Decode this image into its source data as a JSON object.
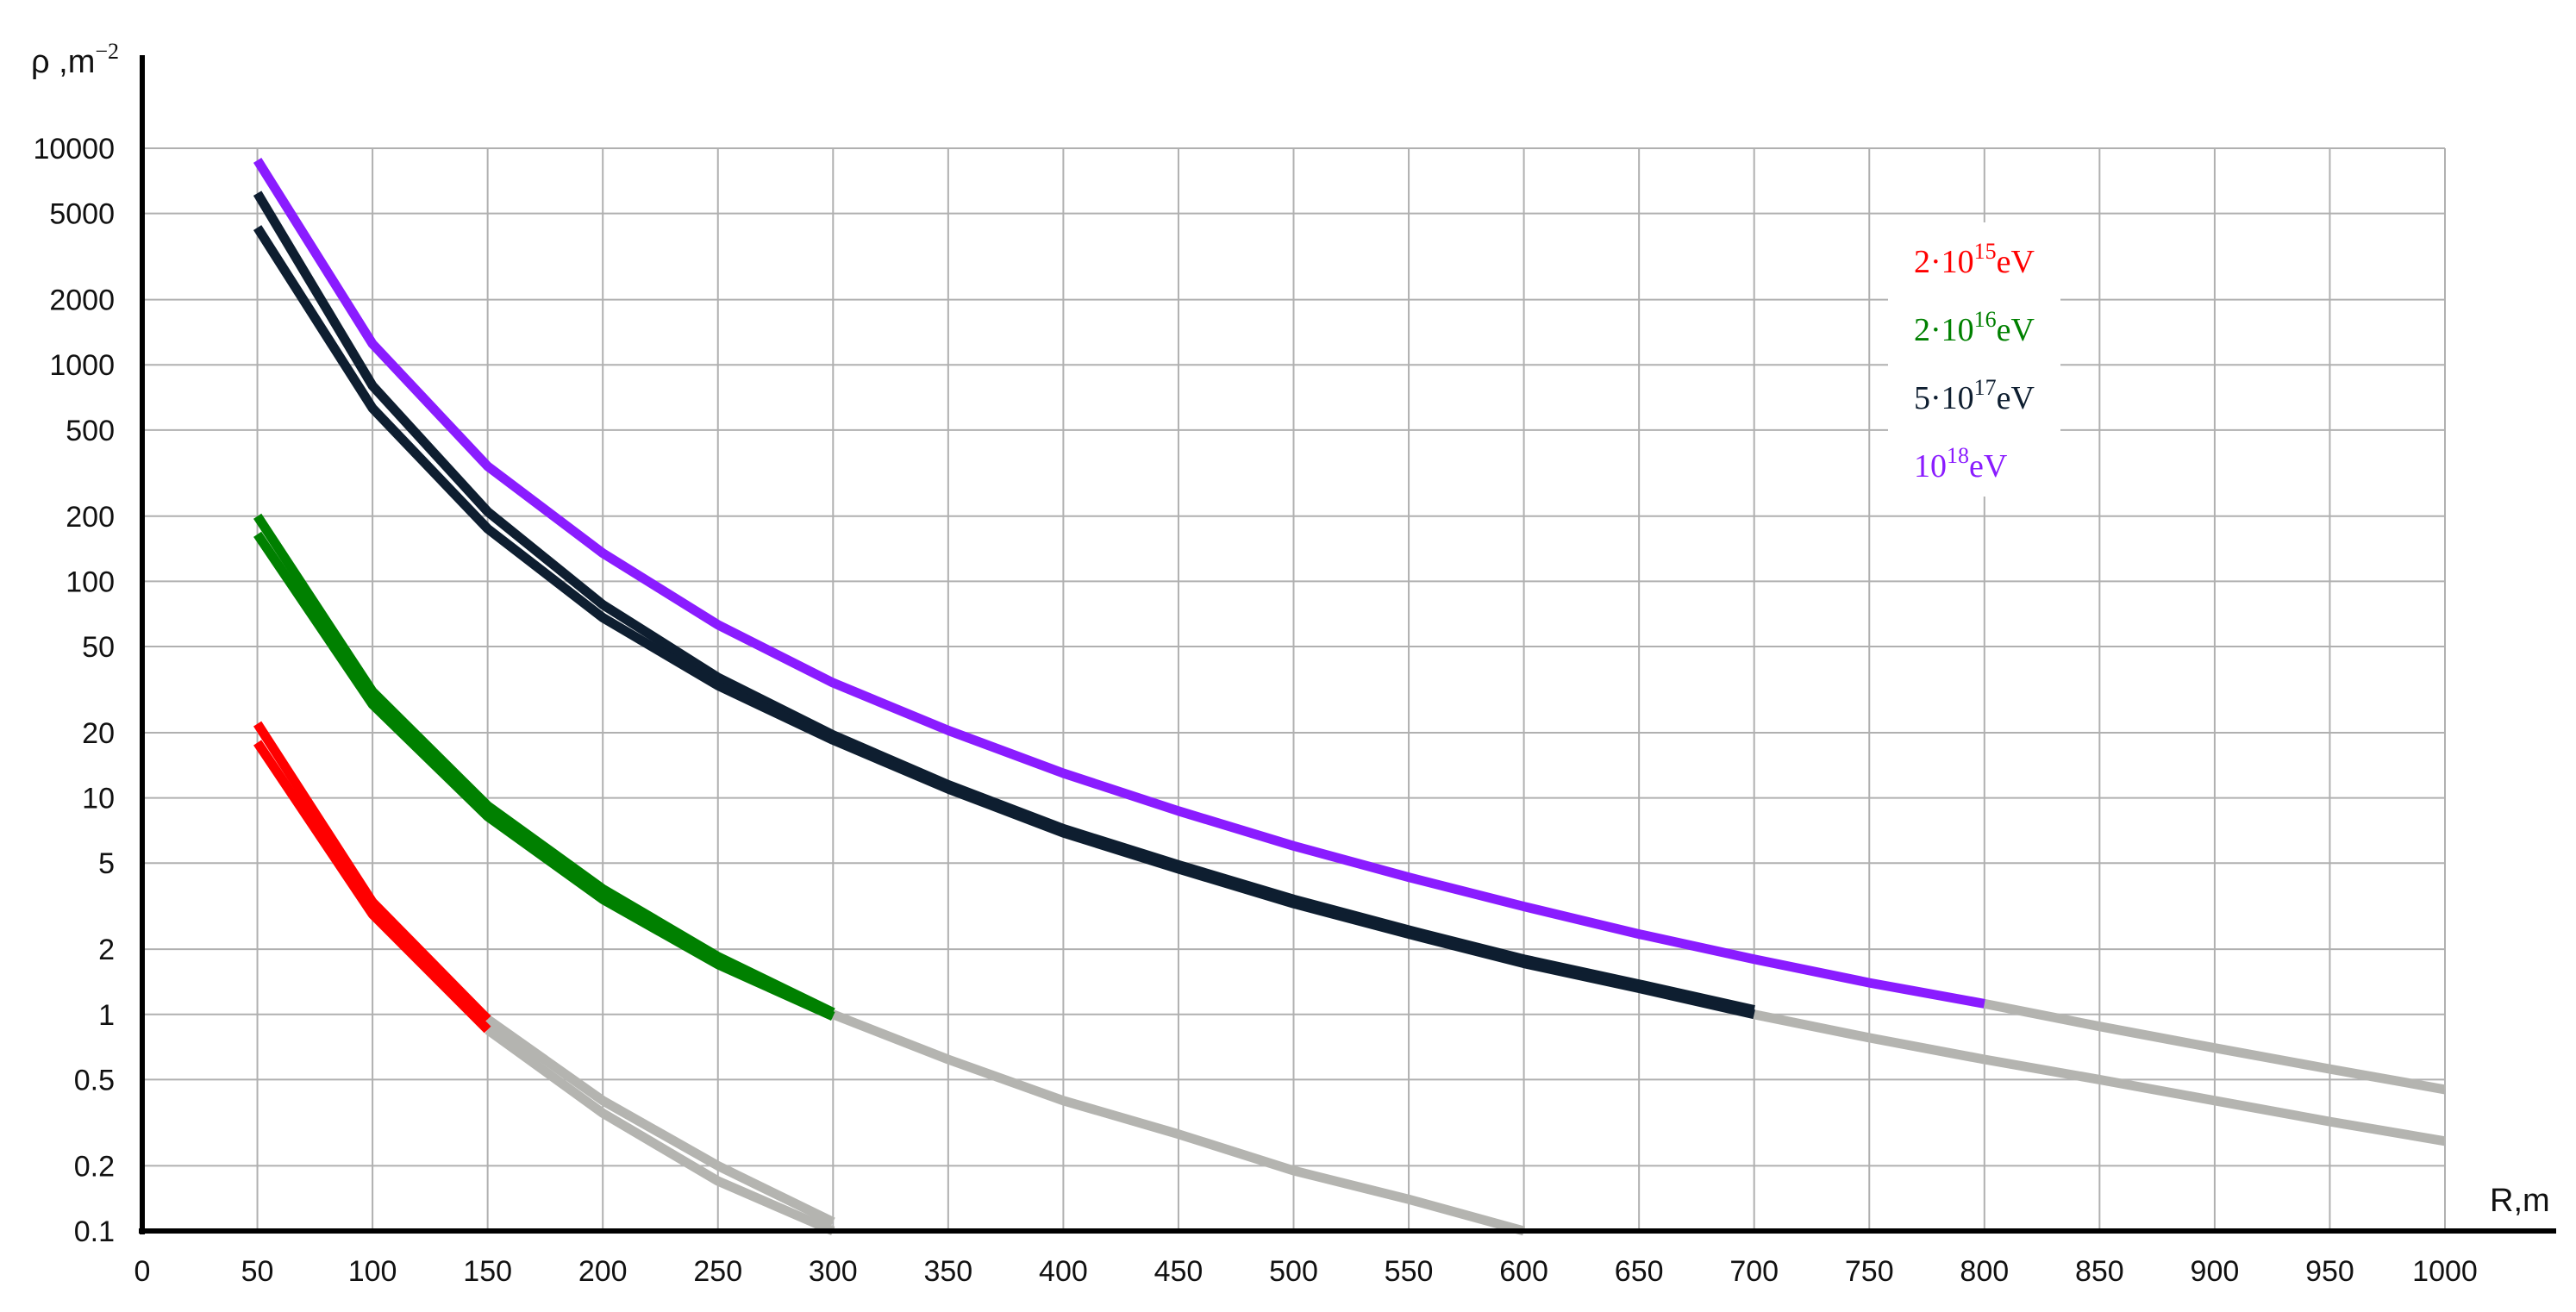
{
  "chart_data": {
    "type": "line",
    "ylabel": "ρ ,m",
    "ylabel_sup": "−2",
    "xlabel": "R,m",
    "x_scale": "linear",
    "y_scale": "log",
    "xlim": [
      0,
      1000
    ],
    "ylim": [
      0.1,
      10000
    ],
    "grid": true,
    "legend_position": "top-right",
    "x_ticks": [
      0,
      50,
      100,
      150,
      200,
      250,
      300,
      350,
      400,
      450,
      500,
      550,
      600,
      650,
      700,
      750,
      800,
      850,
      900,
      950,
      1000
    ],
    "y_ticks": [
      0.1,
      0.2,
      0.5,
      1,
      2,
      5,
      10,
      20,
      50,
      100,
      200,
      500,
      1000,
      2000,
      5000,
      10000
    ],
    "y_tick_labels": [
      "0.1",
      "0.2",
      "0.5",
      "1",
      "2",
      "5",
      "10",
      "20",
      "50",
      "100",
      "200",
      "500",
      "1000",
      "2000",
      "5000",
      "10000"
    ],
    "extrapolation_color": "#b4b4b0",
    "series": [
      {
        "name_base": "2·10",
        "name_exp": "15",
        "name_unit": "eV",
        "color": "#ff0000",
        "lines": [
          {
            "x": [
              50,
              100,
              150
            ],
            "y": [
              22,
              3.3,
              0.95
            ]
          },
          {
            "x": [
              50,
              100,
              150
            ],
            "y": [
              18,
              2.9,
              0.85
            ]
          }
        ],
        "extrapolated": [
          {
            "x": [
              150,
              200,
              250,
              300
            ],
            "y": [
              0.95,
              0.4,
              0.2,
              0.11
            ]
          },
          {
            "x": [
              150,
              200,
              250,
              300
            ],
            "y": [
              0.85,
              0.35,
              0.17,
              0.1
            ]
          }
        ]
      },
      {
        "name_base": "2·10",
        "name_exp": "16",
        "name_unit": "eV",
        "color": "#008000",
        "lines": [
          {
            "x": [
              50,
              100,
              150,
              200,
              250,
              300
            ],
            "y": [
              200,
              31,
              9.2,
              3.8,
              1.85,
              1.02
            ]
          },
          {
            "x": [
              50,
              100,
              150,
              200,
              250,
              300
            ],
            "y": [
              165,
              27,
              8.2,
              3.4,
              1.7,
              0.98
            ]
          }
        ],
        "extrapolated": [
          {
            "x": [
              300,
              350,
              400,
              450,
              500,
              550,
              600
            ],
            "y": [
              1.0,
              0.62,
              0.4,
              0.28,
              0.19,
              0.14,
              0.1
            ]
          }
        ]
      },
      {
        "name_base": "5·10",
        "name_exp": "17",
        "name_unit": "eV",
        "color": "#0e1e30",
        "lines": [
          {
            "x": [
              50,
              100,
              150,
              200,
              250,
              300,
              350,
              400,
              450,
              500,
              550,
              600,
              650,
              700
            ],
            "y": [
              6200,
              800,
              210,
              78,
              36,
              19.5,
              11.5,
              7.2,
              4.9,
              3.4,
              2.45,
              1.8,
              1.38,
              1.05
            ]
          },
          {
            "x": [
              50,
              100,
              150,
              200,
              250,
              300,
              350,
              400,
              450,
              500,
              550,
              600,
              650,
              700
            ],
            "y": [
              4300,
              630,
              175,
              68,
              33,
              18.5,
              11,
              6.9,
              4.7,
              3.25,
              2.35,
              1.72,
              1.32,
              1.0
            ]
          }
        ],
        "extrapolated": [
          {
            "x": [
              700,
              750,
              800,
              850,
              900,
              950,
              1000
            ],
            "y": [
              1.0,
              0.78,
              0.62,
              0.5,
              0.4,
              0.32,
              0.26
            ]
          }
        ]
      },
      {
        "name_base": "10",
        "name_exp": "18",
        "name_unit": "eV",
        "color": "#8a1cff",
        "lines": [
          {
            "x": [
              50,
              100,
              150,
              200,
              250,
              300,
              350,
              400,
              450,
              500,
              550,
              600,
              650,
              700,
              750,
              800
            ],
            "y": [
              8800,
              1250,
              340,
              135,
              63,
              34,
              20.5,
              13,
              8.7,
              6.0,
              4.3,
              3.15,
              2.35,
              1.8,
              1.4,
              1.12
            ]
          }
        ],
        "extrapolated": [
          {
            "x": [
              800,
              850,
              900,
              950,
              1000
            ],
            "y": [
              1.12,
              0.88,
              0.7,
              0.56,
              0.45
            ]
          }
        ]
      }
    ]
  }
}
